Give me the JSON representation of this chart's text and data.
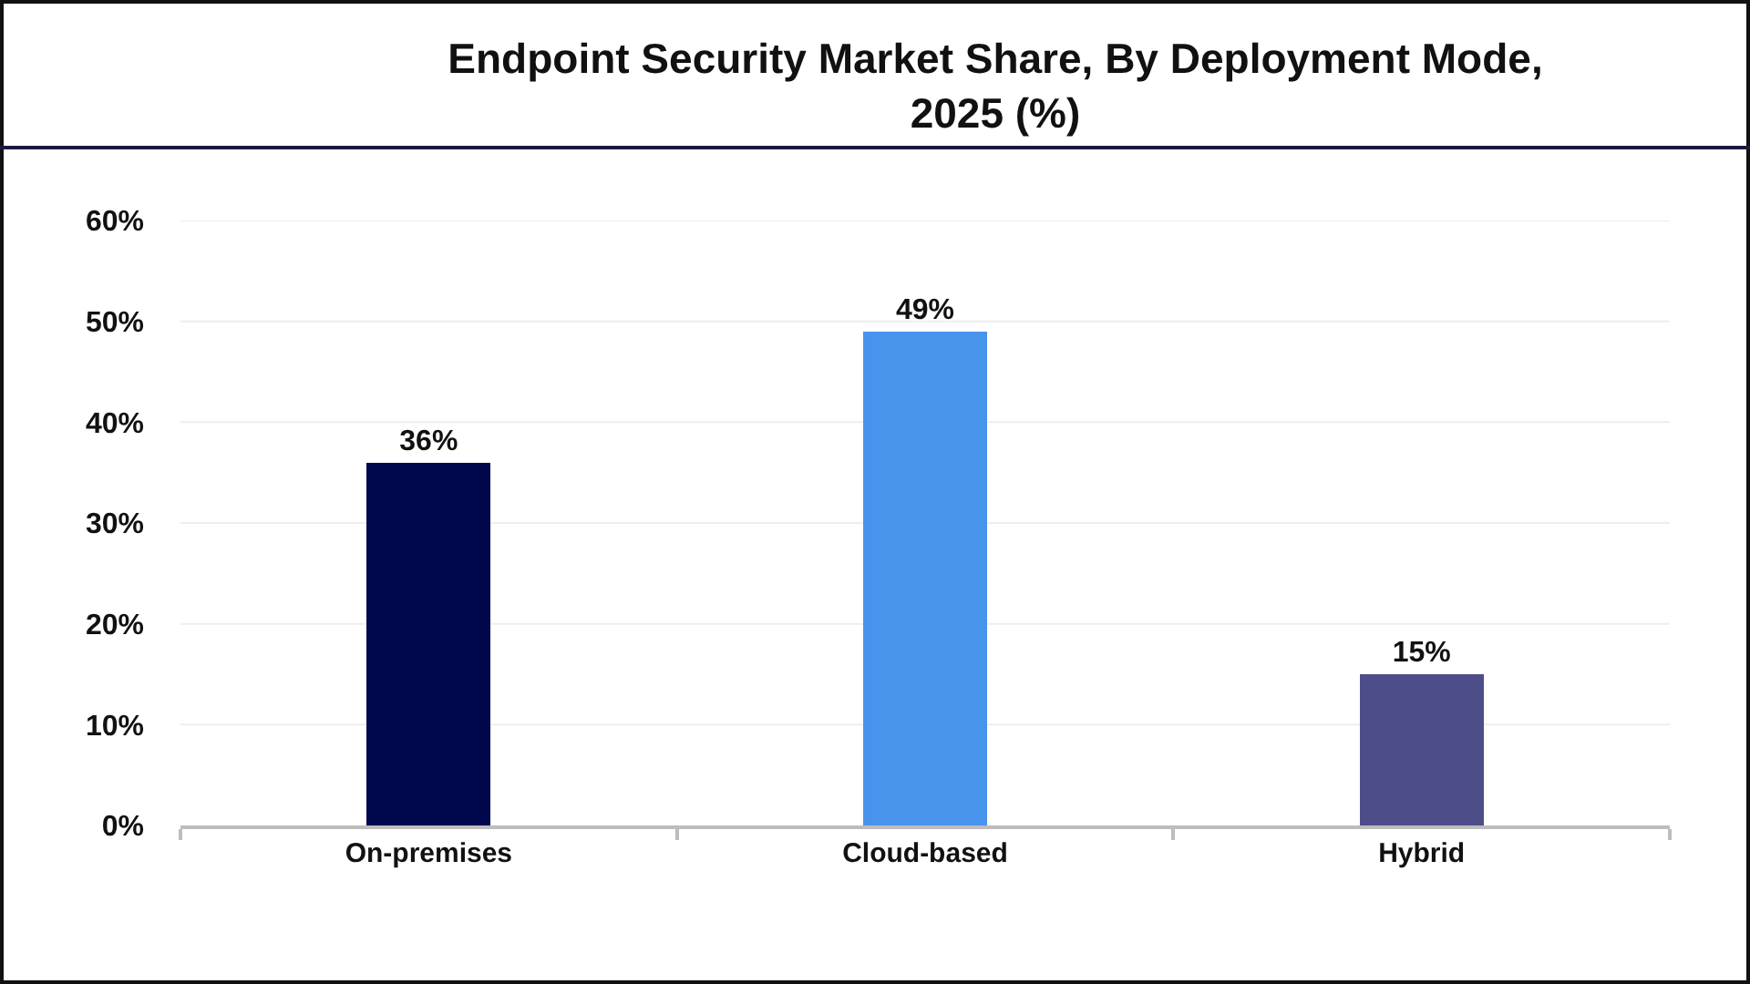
{
  "chart_data": {
    "type": "bar",
    "title": "Endpoint Security Market Share, By Deployment Mode, 2025 (%)",
    "categories": [
      "On-premises",
      "Cloud-based",
      "Hybrid"
    ],
    "values": [
      36,
      49,
      15
    ],
    "value_labels": [
      "36%",
      "49%",
      "15%"
    ],
    "colors": [
      "#00074d",
      "#4893ec",
      "#4d4e89"
    ],
    "ylim": [
      0,
      60
    ],
    "yticks": [
      {
        "value": 0,
        "label": "0%"
      },
      {
        "value": 10,
        "label": "10%"
      },
      {
        "value": 20,
        "label": "20%"
      },
      {
        "value": 30,
        "label": "30%"
      },
      {
        "value": 40,
        "label": "40%"
      },
      {
        "value": 50,
        "label": "50%"
      },
      {
        "value": 60,
        "label": "60%"
      }
    ],
    "grid": "y"
  }
}
